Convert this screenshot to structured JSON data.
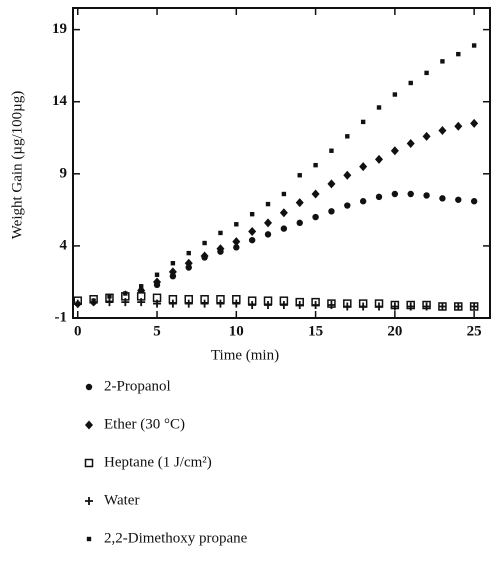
{
  "chart_data": {
    "type": "scatter",
    "x_label": "Time (min)",
    "y_label": "Weight Gain (µg/100µg)",
    "x": [
      0,
      1,
      2,
      3,
      4,
      5,
      6,
      7,
      8,
      9,
      10,
      11,
      12,
      13,
      14,
      15,
      16,
      17,
      18,
      19,
      20,
      21,
      22,
      23,
      24,
      25
    ],
    "xlim": [
      -0.3,
      26
    ],
    "ylim": [
      -1,
      20.5
    ],
    "xticks": [
      0,
      5,
      10,
      15,
      20,
      25
    ],
    "yticks": [
      -1,
      4,
      9,
      14,
      19
    ],
    "color": "#111111",
    "series": [
      {
        "name": "2-Propanol",
        "marker": "dot",
        "values": [
          0,
          0.1,
          0.3,
          0.5,
          0.9,
          1.3,
          1.9,
          2.5,
          3.2,
          3.6,
          3.9,
          4.4,
          4.8,
          5.2,
          5.6,
          6,
          6.4,
          6.8,
          7.1,
          7.4,
          7.6,
          7.6,
          7.5,
          7.3,
          7.2,
          7.1
        ]
      },
      {
        "name": "Ether (30 °C)",
        "marker": "diamond",
        "values": [
          0,
          0.2,
          0.4,
          0.6,
          0.9,
          1.5,
          2.2,
          2.8,
          3.3,
          3.8,
          4.3,
          5,
          5.6,
          6.3,
          7,
          7.6,
          8.3,
          8.9,
          9.5,
          10,
          10.6,
          11.1,
          11.6,
          12,
          12.3,
          12.5
        ]
      },
      {
        "name": "Heptane (1 J/cm²)",
        "marker": "open-square",
        "values": [
          0.2,
          0.3,
          0.4,
          0.5,
          0.5,
          0.4,
          0.3,
          0.3,
          0.3,
          0.3,
          0.3,
          0.2,
          0.2,
          0.2,
          0.1,
          0.1,
          0,
          0,
          0,
          0,
          -0.1,
          -0.1,
          -0.1,
          -0.2,
          -0.2,
          -0.2
        ]
      },
      {
        "name": "Water",
        "marker": "plus",
        "values": [
          0,
          0.1,
          0.1,
          0.1,
          0.1,
          0,
          0,
          0,
          0,
          0,
          0,
          -0.1,
          -0.1,
          -0.1,
          -0.1,
          -0.1,
          -0.1,
          -0.2,
          -0.2,
          -0.2,
          -0.2,
          -0.2,
          -0.2,
          -0.2,
          -0.2,
          -0.2
        ]
      },
      {
        "name": "2,2-Dimethoxy propane",
        "marker": "small-square",
        "values": [
          0,
          0.2,
          0.5,
          0.7,
          1.2,
          2,
          2.8,
          3.5,
          4.2,
          4.9,
          5.5,
          6.2,
          6.9,
          7.6,
          8.9,
          9.6,
          10.6,
          11.6,
          12.6,
          13.6,
          14.5,
          15.3,
          16,
          16.8,
          17.3,
          17.9
        ]
      }
    ]
  }
}
